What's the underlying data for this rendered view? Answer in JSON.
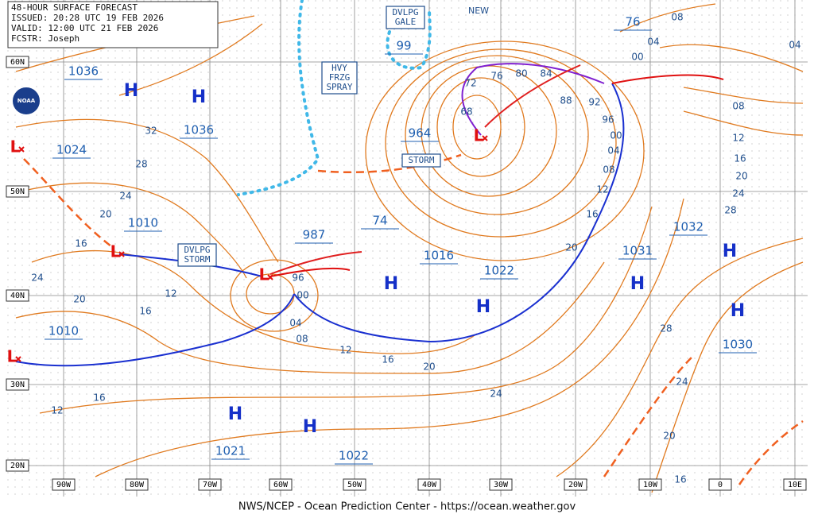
{
  "header": {
    "lines": [
      "48-HOUR SURFACE FORECAST",
      "ISSUED: 20:28 UTC 19 FEB 2026",
      "VALID:  12:00 UTC 21 FEB 2026",
      "FCSTR:  Joseph"
    ]
  },
  "footer": "NWS/NCEP - Ocean Prediction Center - https://ocean.weather.gov",
  "logo": "NOAA",
  "latitude_labels": [
    "60N",
    "50N",
    "40N",
    "30N",
    "20N"
  ],
  "longitude_labels": [
    "90W",
    "80W",
    "70W",
    "60W",
    "50W",
    "40W",
    "30W",
    "20W",
    "10W",
    "0",
    "10E"
  ],
  "high_symbol": "H",
  "low_symbol": "L",
  "pressure_values": [
    "1036",
    "1036",
    "1024",
    "1010",
    "1010",
    "987",
    "74",
    "1016",
    "1022",
    "964",
    "99",
    "76",
    "1032",
    "1031",
    "1030",
    "1021",
    "1022"
  ],
  "isobar_labels": [
    "32",
    "28",
    "24",
    "20",
    "16",
    "24",
    "20",
    "16",
    "12",
    "12",
    "16",
    "96",
    "00",
    "04",
    "08",
    "12",
    "16",
    "20",
    "24",
    "28",
    "24",
    "20",
    "16",
    "72",
    "76",
    "80",
    "84",
    "88",
    "92",
    "96",
    "00",
    "04",
    "08",
    "12",
    "16",
    "20",
    "68",
    "08",
    "04",
    "00",
    "04",
    "08",
    "12",
    "16",
    "20",
    "24",
    "28"
  ],
  "annotations": {
    "dvlpg_gale": [
      "DVLPG",
      "GALE"
    ],
    "hvy_frzg_spray": [
      "HVY",
      "FRZG",
      "SPRAY"
    ],
    "dvlpg_storm": [
      "DVLPG",
      "STORM"
    ],
    "storm": "STORM",
    "new": "NEW"
  }
}
